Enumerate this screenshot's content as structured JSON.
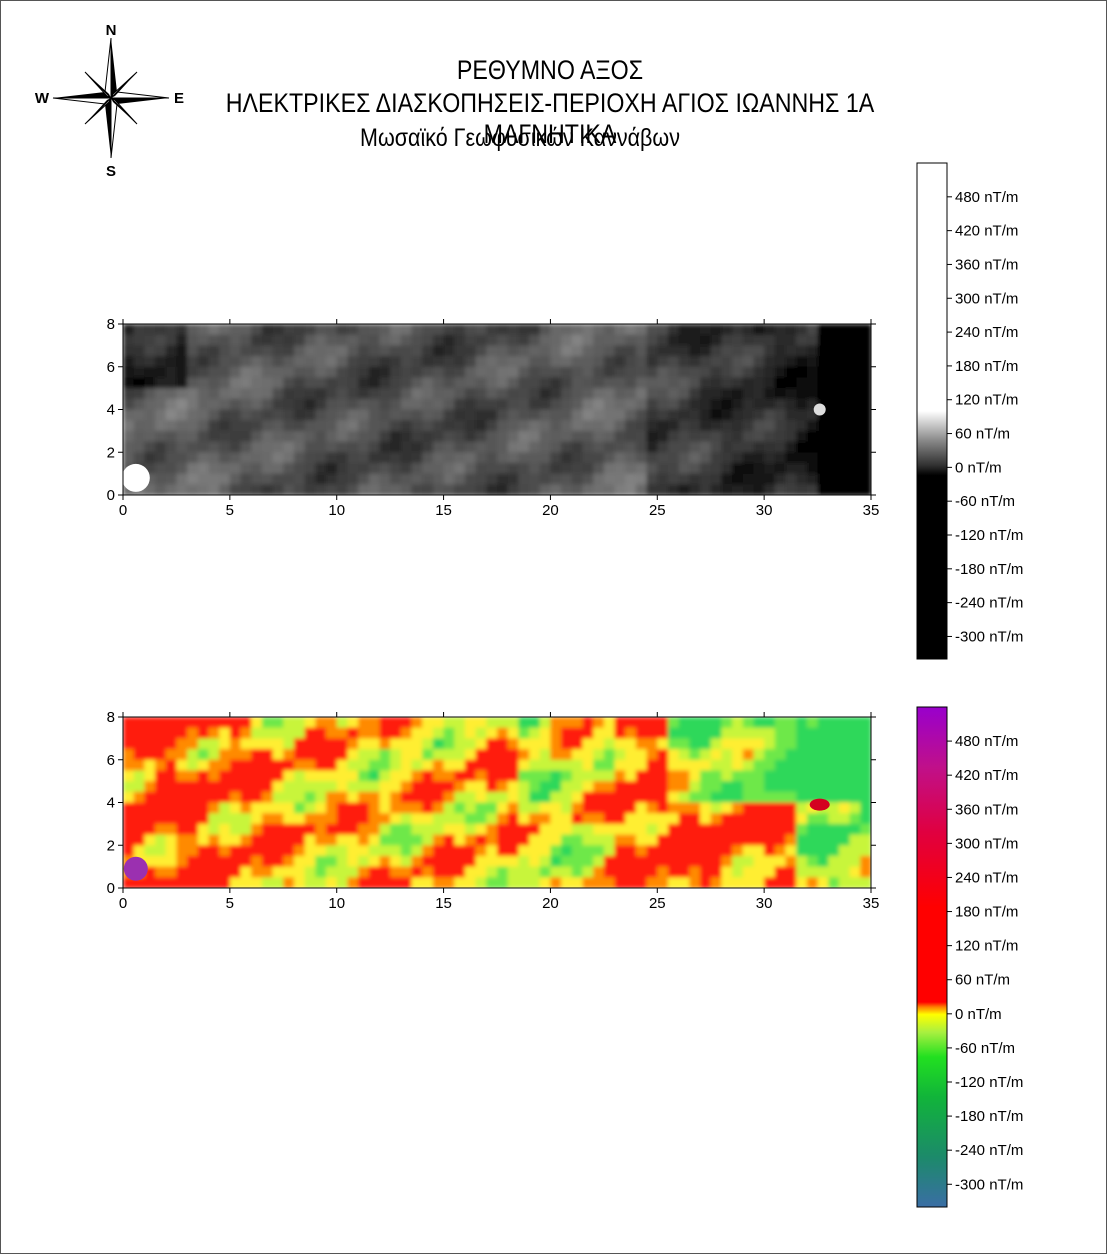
{
  "titles": {
    "line1": "ΡΕΘΥΜΝΟ ΑΞΟΣ",
    "line2": "ΗΛΕΚΤΡΙΚΕΣ ΔΙΑΣΚΟΠΗΣΕΙΣ-ΠΕΡΙΟΧΗ ΑΓΙΟΣ ΙΩΑΝΝΗΣ 1Α ΜΑΓΝΗΤΙΚΑ",
    "line3": "Μωσαϊκό Γεωφυσικών Καννάβων"
  },
  "compass": {
    "n": "N",
    "s": "S",
    "e": "E",
    "w": "W"
  },
  "chart_data": [
    {
      "type": "heatmap",
      "colormap": "grayscale",
      "title": "",
      "xlabel": "",
      "ylabel": "",
      "xlim": [
        0,
        35
      ],
      "ylim": [
        0,
        8
      ],
      "x_ticks": [
        0,
        5,
        10,
        15,
        20,
        25,
        30,
        35
      ],
      "y_ticks": [
        0,
        2,
        4,
        6,
        8
      ],
      "colorbar": {
        "unit": "nT/m",
        "range": [
          -340,
          540
        ],
        "ticks": [
          "480 nT/m",
          "420 nT/m",
          "360 nT/m",
          "300 nT/m",
          "240 nT/m",
          "180 nT/m",
          "120 nT/m",
          "60 nT/m",
          "0 nT/m",
          "-60 nT/m",
          "-120 nT/m",
          "-180 nT/m",
          "-240 nT/m",
          "-300 nT/m"
        ],
        "colors": [
          "#000000",
          "#ffffff"
        ]
      }
    },
    {
      "type": "heatmap",
      "colormap": "rainbow",
      "title": "",
      "xlabel": "",
      "ylabel": "",
      "xlim": [
        0,
        35
      ],
      "ylim": [
        0,
        8
      ],
      "x_ticks": [
        0,
        5,
        10,
        15,
        20,
        25,
        30,
        35
      ],
      "y_ticks": [
        0,
        2,
        4,
        6,
        8
      ],
      "colorbar": {
        "unit": "nT/m",
        "range": [
          -340,
          540
        ],
        "ticks": [
          "480 nT/m",
          "420 nT/m",
          "360 nT/m",
          "300 nT/m",
          "240 nT/m",
          "180 nT/m",
          "120 nT/m",
          "60 nT/m",
          "0 nT/m",
          "-60 nT/m",
          "-120 nT/m",
          "-180 nT/m",
          "-240 nT/m",
          "-300 nT/m"
        ],
        "colors": [
          "#3a6ea5",
          "#1fa060",
          "#00e000",
          "#ffff00",
          "#ff0000",
          "#d0005a",
          "#9900cc"
        ]
      }
    }
  ],
  "x_tick_labels": [
    "0",
    "5",
    "10",
    "15",
    "20",
    "25",
    "30",
    "35"
  ],
  "y_tick_labels": [
    "0",
    "2",
    "4",
    "6",
    "8"
  ]
}
